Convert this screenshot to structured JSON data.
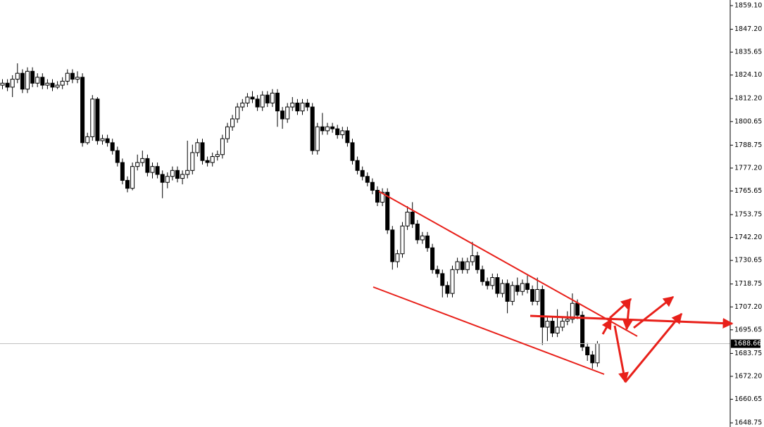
{
  "chart_data": {
    "type": "candlestick",
    "open": [
      1819,
      1820,
      1818,
      1822,
      1825,
      1817,
      1826,
      1820,
      1823,
      1819,
      1820,
      1818,
      1819,
      1821,
      1825,
      1822,
      1823,
      1790,
      1793,
      1812,
      1791,
      1792,
      1790,
      1786,
      1780,
      1771,
      1767,
      1778,
      1780,
      1782,
      1775,
      1778,
      1774,
      1770,
      1773,
      1776,
      1772,
      1774,
      1776,
      1785,
      1790,
      1781,
      1780,
      1783,
      1784,
      1792,
      1798,
      1802,
      1808,
      1810,
      1813,
      1812,
      1808,
      1814,
      1810,
      1815,
      1806,
      1802,
      1808,
      1810,
      1806,
      1810,
      1808,
      1786,
      1798,
      1796,
      1798,
      1797,
      1794,
      1796,
      1790,
      1781,
      1776,
      1773,
      1770,
      1766,
      1760,
      1765,
      1746,
      1730,
      1734,
      1748,
      1755,
      1749,
      1741,
      1743,
      1737,
      1726,
      1724,
      1718,
      1714,
      1726,
      1730,
      1726,
      1730,
      1733,
      1726,
      1720,
      1718,
      1722,
      1714,
      1719,
      1710,
      1718,
      1715,
      1719,
      1716,
      1710,
      1716,
      1697,
      1700,
      1694,
      1697,
      1700,
      1701,
      1709,
      1703,
      1687,
      1683,
      1679
    ],
    "high": [
      1822,
      1822,
      1824,
      1830,
      1827,
      1828,
      1828,
      1825,
      1825,
      1822,
      1822,
      1821,
      1823,
      1827,
      1827,
      1826,
      1825,
      1795,
      1814,
      1813,
      1794,
      1794,
      1792,
      1788,
      1782,
      1773,
      1780,
      1784,
      1786,
      1784,
      1780,
      1780,
      1776,
      1775,
      1778,
      1778,
      1776,
      1791,
      1789,
      1792,
      1792,
      1783,
      1785,
      1786,
      1794,
      1800,
      1804,
      1810,
      1812,
      1815,
      1816,
      1814,
      1816,
      1816,
      1817,
      1817,
      1808,
      1810,
      1813,
      1812,
      1812,
      1812,
      1810,
      1800,
      1805,
      1800,
      1800,
      1799,
      1798,
      1798,
      1792,
      1783,
      1778,
      1775,
      1772,
      1768,
      1767,
      1767,
      1748,
      1736,
      1750,
      1758,
      1760,
      1751,
      1745,
      1745,
      1739,
      1728,
      1726,
      1720,
      1728,
      1732,
      1732,
      1732,
      1740,
      1735,
      1728,
      1722,
      1724,
      1724,
      1721,
      1721,
      1720,
      1722,
      1721,
      1723,
      1718,
      1722,
      1718,
      1702,
      1702,
      1706,
      1702,
      1705,
      1714,
      1711,
      1705,
      1689,
      1685,
      1690
    ],
    "low": [
      1817,
      1816,
      1813,
      1820,
      1815,
      1815,
      1818,
      1818,
      1817,
      1817,
      1816,
      1817,
      1817,
      1819,
      1820,
      1820,
      1788,
      1789,
      1791,
      1789,
      1789,
      1788,
      1784,
      1778,
      1769,
      1765,
      1766,
      1776,
      1778,
      1773,
      1772,
      1772,
      1762,
      1767,
      1771,
      1770,
      1769,
      1772,
      1774,
      1783,
      1779,
      1778,
      1778,
      1781,
      1782,
      1790,
      1796,
      1800,
      1806,
      1808,
      1810,
      1806,
      1806,
      1808,
      1808,
      1798,
      1797,
      1800,
      1806,
      1804,
      1804,
      1806,
      1784,
      1784,
      1794,
      1794,
      1795,
      1792,
      1792,
      1788,
      1779,
      1774,
      1771,
      1768,
      1764,
      1758,
      1758,
      1744,
      1726,
      1727,
      1732,
      1746,
      1747,
      1739,
      1739,
      1735,
      1724,
      1722,
      1712,
      1712,
      1712,
      1724,
      1724,
      1724,
      1728,
      1724,
      1718,
      1716,
      1716,
      1712,
      1712,
      1704,
      1708,
      1713,
      1713,
      1714,
      1708,
      1708,
      1688,
      1690,
      1692,
      1692,
      1695,
      1698,
      1699,
      1701,
      1685,
      1680,
      1676,
      1677
    ],
    "close": [
      1820,
      1818,
      1822,
      1825,
      1817,
      1826,
      1820,
      1823,
      1819,
      1820,
      1818,
      1819,
      1821,
      1825,
      1822,
      1823,
      1790,
      1793,
      1812,
      1791,
      1792,
      1790,
      1786,
      1780,
      1771,
      1767,
      1778,
      1780,
      1782,
      1775,
      1778,
      1774,
      1770,
      1773,
      1776,
      1772,
      1774,
      1776,
      1785,
      1790,
      1781,
      1780,
      1783,
      1784,
      1792,
      1798,
      1802,
      1808,
      1810,
      1813,
      1812,
      1808,
      1814,
      1810,
      1815,
      1806,
      1802,
      1808,
      1810,
      1806,
      1810,
      1808,
      1786,
      1798,
      1796,
      1798,
      1797,
      1794,
      1796,
      1790,
      1781,
      1776,
      1773,
      1770,
      1766,
      1760,
      1765,
      1746,
      1730,
      1734,
      1748,
      1755,
      1749,
      1741,
      1743,
      1737,
      1726,
      1724,
      1718,
      1714,
      1726,
      1730,
      1726,
      1730,
      1733,
      1726,
      1720,
      1718,
      1722,
      1714,
      1719,
      1710,
      1718,
      1715,
      1719,
      1716,
      1710,
      1716,
      1697,
      1700,
      1694,
      1697,
      1700,
      1701,
      1709,
      1703,
      1687,
      1683,
      1679,
      1688.66
    ],
    "ylim": [
      1646.65,
      1861.94
    ],
    "yticks": [
      {
        "value": 1859.1,
        "label": "1859.10"
      },
      {
        "value": 1847.2,
        "label": "1847.20"
      },
      1835.65,
      {
        "value": 1824.1,
        "label": "1824.10"
      },
      {
        "value": 1812.2,
        "label": "1812.20"
      },
      1800.65,
      1788.75,
      {
        "value": 1777.2,
        "label": "1777.20"
      },
      1765.65,
      1753.75,
      {
        "value": 1742.2,
        "label": "1742.20"
      },
      1730.65,
      1718.75,
      {
        "value": 1707.2,
        "label": "1707.20"
      },
      1695.65,
      1683.75,
      {
        "value": 1672.2,
        "label": "1672.20"
      },
      1660.65,
      1648.75
    ],
    "up_color": "#ffffff",
    "down_color": "#000000"
  }
}
